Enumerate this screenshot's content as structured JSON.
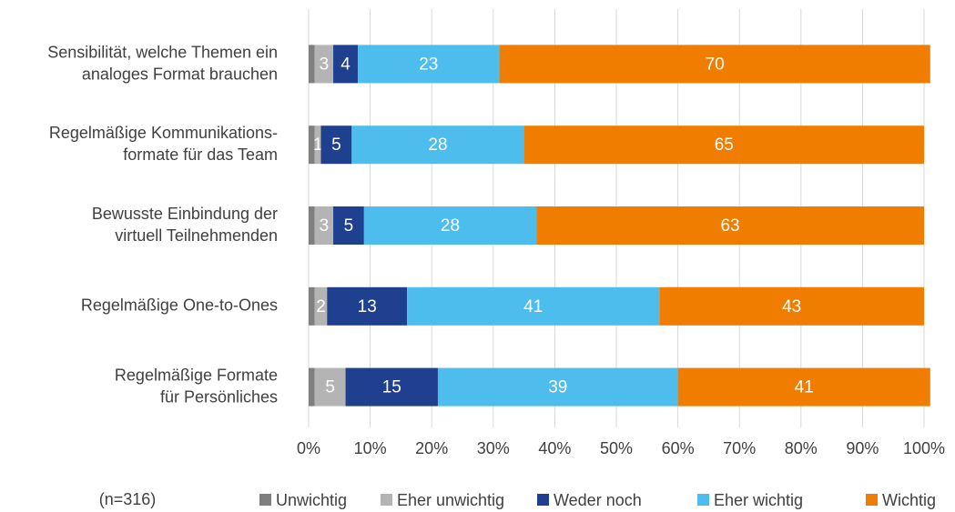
{
  "chart_data": {
    "type": "stacked_bar_horizontal",
    "categories": [
      "Sensibilität, welche Themen ein\nanaloges Format brauchen",
      "Regelmäßige Kommunikations-\nformate für das Team",
      "Bewusste Einbindung der\nvirtuell Teilnehmenden",
      "Regelmäßige One-to-Ones",
      "Regelmäßige Formate\nfür Persönliches"
    ],
    "series": [
      {
        "name": "Unwichtig",
        "color": "#7f7f7f",
        "show_labels": false,
        "values": [
          1,
          1,
          1,
          1,
          1
        ]
      },
      {
        "name": "Eher unwichtig",
        "color": "#b4b4b4",
        "show_labels": true,
        "values": [
          3,
          1,
          3,
          2,
          5
        ]
      },
      {
        "name": "Weder noch",
        "color": "#1f3f8f",
        "show_labels": true,
        "values": [
          4,
          5,
          5,
          13,
          15
        ]
      },
      {
        "name": "Eher wichtig",
        "color": "#4dbdee",
        "show_labels": true,
        "values": [
          23,
          28,
          28,
          41,
          39
        ]
      },
      {
        "name": "Wichtig",
        "color": "#f07c00",
        "show_labels": true,
        "values": [
          70,
          65,
          63,
          43,
          41
        ]
      }
    ],
    "xlim": [
      0,
      100
    ],
    "xticks": [
      {
        "value": 0,
        "label": "0%"
      },
      {
        "value": 10,
        "label": "10%"
      },
      {
        "value": 20,
        "label": "20%"
      },
      {
        "value": 30,
        "label": "30%"
      },
      {
        "value": 40,
        "label": "40%"
      },
      {
        "value": 50,
        "label": "50%"
      },
      {
        "value": 60,
        "label": "60%"
      },
      {
        "value": 70,
        "label": "70%"
      },
      {
        "value": 80,
        "label": "80%"
      },
      {
        "value": 90,
        "label": "90%"
      },
      {
        "value": 100,
        "label": "100%"
      }
    ],
    "grid": true,
    "annotation": "(n=316)",
    "legend": "bottom"
  }
}
